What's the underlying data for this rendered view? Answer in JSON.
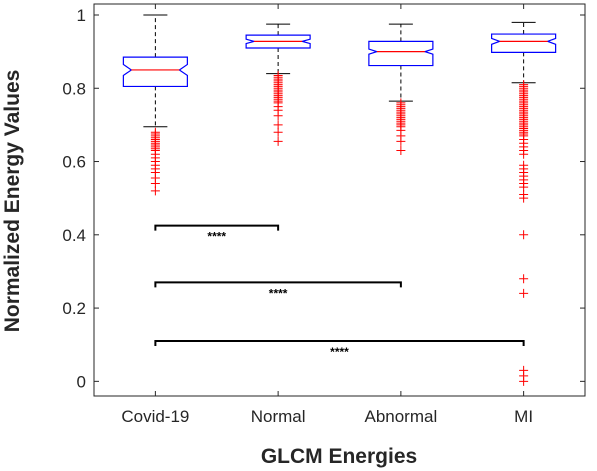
{
  "chart_data": {
    "type": "boxplot",
    "title": "",
    "xlabel": "GLCM Energies",
    "ylabel": "Normalized Energy Values",
    "ylim": [
      -0.04,
      1.03
    ],
    "yticks": [
      0,
      0.2,
      0.4,
      0.6,
      0.8,
      1
    ],
    "yticklabels": [
      "0",
      "0.2",
      "0.4",
      "0.6",
      "0.8",
      "1"
    ],
    "notched": true,
    "categories": [
      "Covid-19",
      "Normal",
      "Abnormal",
      "MI"
    ],
    "boxes": [
      {
        "category": "Covid-19",
        "whisker_low": 0.695,
        "q1": 0.805,
        "median": 0.85,
        "q3": 0.885,
        "whisker_high": 1.0,
        "notch_low": 0.835,
        "notch_high": 0.865,
        "outliers": [
          0.68,
          0.675,
          0.67,
          0.665,
          0.66,
          0.655,
          0.65,
          0.645,
          0.64,
          0.635,
          0.63,
          0.62,
          0.61,
          0.6,
          0.59,
          0.58,
          0.57,
          0.555,
          0.54,
          0.52
        ]
      },
      {
        "category": "Normal",
        "whisker_low": 0.84,
        "q1": 0.91,
        "median": 0.928,
        "q3": 0.945,
        "whisker_high": 0.975,
        "notch_low": 0.922,
        "notch_high": 0.934,
        "outliers": [
          0.835,
          0.83,
          0.825,
          0.82,
          0.815,
          0.81,
          0.805,
          0.8,
          0.795,
          0.79,
          0.785,
          0.78,
          0.775,
          0.77,
          0.765,
          0.76,
          0.75,
          0.74,
          0.725,
          0.7,
          0.68,
          0.655
        ]
      },
      {
        "category": "Abnormal",
        "whisker_low": 0.765,
        "q1": 0.862,
        "median": 0.9,
        "q3": 0.928,
        "whisker_high": 0.975,
        "notch_low": 0.893,
        "notch_high": 0.907,
        "outliers": [
          0.76,
          0.755,
          0.75,
          0.745,
          0.74,
          0.735,
          0.73,
          0.725,
          0.72,
          0.715,
          0.71,
          0.705,
          0.7,
          0.695,
          0.685,
          0.67,
          0.655,
          0.63
        ]
      },
      {
        "category": "MI",
        "whisker_low": 0.815,
        "q1": 0.898,
        "median": 0.928,
        "q3": 0.948,
        "whisker_high": 0.98,
        "notch_low": 0.92,
        "notch_high": 0.936,
        "outliers": [
          0.81,
          0.805,
          0.8,
          0.795,
          0.79,
          0.785,
          0.78,
          0.775,
          0.77,
          0.765,
          0.76,
          0.755,
          0.75,
          0.745,
          0.74,
          0.735,
          0.73,
          0.725,
          0.72,
          0.715,
          0.71,
          0.705,
          0.7,
          0.695,
          0.69,
          0.685,
          0.68,
          0.675,
          0.67,
          0.66,
          0.65,
          0.64,
          0.63,
          0.62,
          0.59,
          0.58,
          0.57,
          0.56,
          0.55,
          0.54,
          0.53,
          0.51,
          0.5,
          0.4,
          0.28,
          0.24,
          0.03,
          0.015,
          0.0
        ]
      }
    ],
    "significance": [
      {
        "from": "Covid-19",
        "to": "Normal",
        "y": 0.425,
        "label": "****"
      },
      {
        "from": "Covid-19",
        "to": "Abnormal",
        "y": 0.27,
        "label": "****"
      },
      {
        "from": "Covid-19",
        "to": "MI",
        "y": 0.11,
        "label": "****"
      }
    ],
    "colors": {
      "box": "#0000ff",
      "median": "#ff0000",
      "outlier": "#ff0000",
      "whisker": "#000000",
      "axis": "#262626",
      "bracket": "#000000"
    }
  }
}
